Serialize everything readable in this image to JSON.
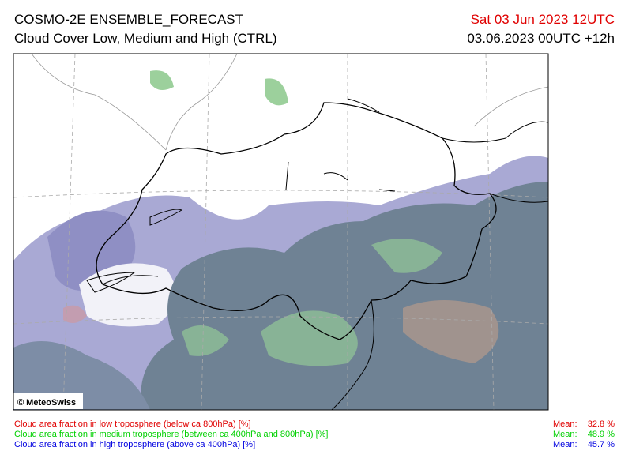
{
  "header": {
    "title": "COSMO-2E ENSEMBLE_FORECAST",
    "subtitle": "Cloud Cover Low, Medium and High (CTRL)",
    "valid_time": "Sat 03 Jun 2023 12UTC",
    "run": "03.06.2023 00UTC +12h"
  },
  "map": {
    "credit": "© MeteoSwiss"
  },
  "legend": [
    {
      "label": "Cloud area fraction in low troposphere (below ca 800hPa) [%]",
      "mean_label": "Mean:",
      "mean": "32.8 %",
      "color": "#e00000"
    },
    {
      "label": "Cloud area fraction in medium troposphere (between ca 400hPa and 800hPa) [%]",
      "mean_label": "Mean:",
      "mean": "48.9 %",
      "color": "#00d000"
    },
    {
      "label": "Cloud area fraction in high troposphere (above ca 400hPa) [%]",
      "mean_label": "Mean:",
      "mean": "45.7 %",
      "color": "#0000e0"
    }
  ]
}
